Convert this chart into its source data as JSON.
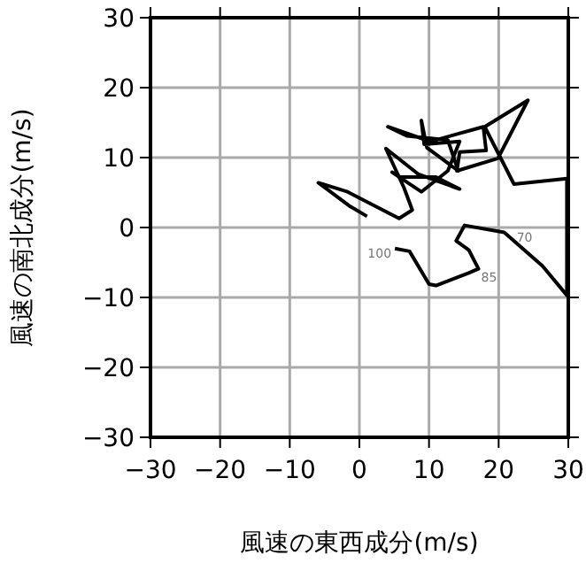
{
  "chart_data": {
    "type": "line",
    "xlabel": "風速の東西成分(m/s)",
    "ylabel": "風速の南北成分(m/s)",
    "xlim": [
      -30,
      30
    ],
    "ylim": [
      -30,
      30
    ],
    "xticks": [
      -30,
      -20,
      -10,
      0,
      10,
      20,
      30
    ],
    "yticks": [
      -30,
      -20,
      -10,
      0,
      10,
      20,
      30
    ],
    "grid": true,
    "series": [
      {
        "color": "#000000",
        "x": [
          1.1,
          -1.3,
          -5.9,
          -1.7,
          5.7,
          7.6,
          6.4,
          3.8,
          8.5,
          14.4,
          11.0,
          5.9,
          4.7,
          8.9,
          12.7,
          14.4,
          9.3,
          8.9,
          9.7,
          14.2,
          12.7,
          6.8,
          4.1,
          10.2,
          17.8,
          18.2,
          14.4,
          14.0,
          19.9,
          24.2,
          18.0,
          22.2,
          29.8,
          29.8,
          26.3,
          20.8,
          15.1,
          13.9,
          15.7,
          17.1,
          15.7,
          11.0,
          10.0,
          7.2,
          5.1
        ],
        "values": [
          1.6,
          3.0,
          6.4,
          5.1,
          1.3,
          2.5,
          5.7,
          11.3,
          7.6,
          5.5,
          7.2,
          7.2,
          7.9,
          5.1,
          8.1,
          12.3,
          11.9,
          15.3,
          11.4,
          8.1,
          12.5,
          13.1,
          14.4,
          12.3,
          14.4,
          11.0,
          10.8,
          8.1,
          9.9,
          18.2,
          14.4,
          6.2,
          7.0,
          -9.7,
          -5.5,
          -0.7,
          0.3,
          -1.9,
          -3.2,
          -5.9,
          -6.5,
          -8.3,
          -8.1,
          -3.4,
          -3.0
        ]
      }
    ],
    "annotations": [
      {
        "text": "70",
        "x": 20.8,
        "y": -0.7
      },
      {
        "text": "85",
        "x": 15.7,
        "y": -6.5
      },
      {
        "text": "100",
        "x": 5.1,
        "y": -3.0
      }
    ]
  }
}
